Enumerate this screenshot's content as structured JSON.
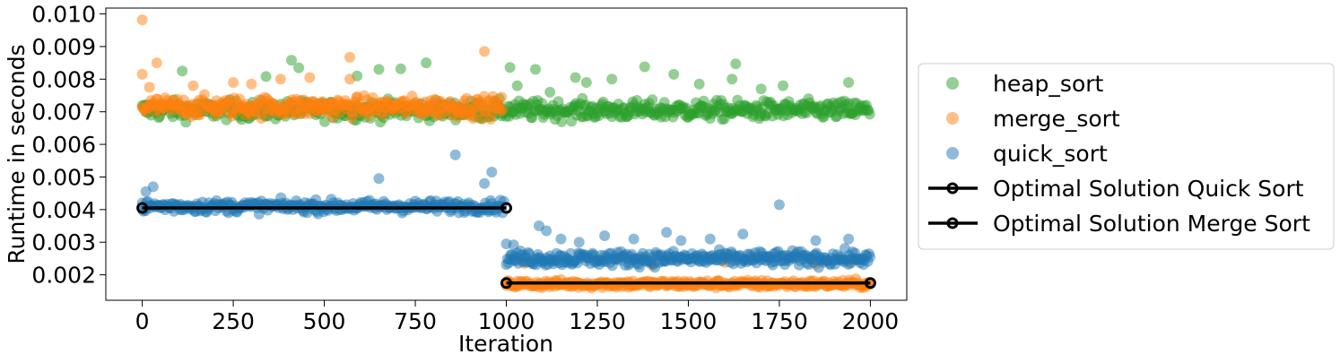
{
  "chart_data": {
    "type": "scatter",
    "xlabel": "Iteration",
    "ylabel": "Runtime in seconds",
    "xlim": [
      -100,
      2100
    ],
    "ylim": [
      0.00122,
      0.01018
    ],
    "xticks": [
      0,
      250,
      500,
      750,
      1000,
      1250,
      1500,
      1750,
      2000
    ],
    "yticks": [
      0.002,
      0.003,
      0.004,
      0.005,
      0.006,
      0.007,
      0.008,
      0.009,
      0.01
    ],
    "xtick_labels": [
      "0",
      "250",
      "500",
      "750",
      "1000",
      "1250",
      "1500",
      "1750",
      "2000"
    ],
    "ytick_labels": [
      "0.002",
      "0.003",
      "0.004",
      "0.005",
      "0.006",
      "0.007",
      "0.008",
      "0.009",
      "0.010"
    ],
    "grid": false,
    "legend": {
      "placement": "outside-right",
      "entries": [
        "heap_sort",
        "merge_sort",
        "quick_sort",
        "Optimal Solution Quick Sort",
        "Optimal Solution Merge Sort"
      ]
    },
    "scatter_series": [
      {
        "name": "heap_sort",
        "color": "#2ca02c",
        "segments": [
          {
            "x_start": 0,
            "x_end": 2000,
            "center": 0.00705,
            "spread": 0.00028
          }
        ],
        "outliers": [
          [
            110,
            0.00825
          ],
          [
            340,
            0.00808
          ],
          [
            410,
            0.00858
          ],
          [
            430,
            0.00835
          ],
          [
            590,
            0.0081
          ],
          [
            650,
            0.0083
          ],
          [
            710,
            0.00832
          ],
          [
            780,
            0.0085
          ],
          [
            1010,
            0.00836
          ],
          [
            1030,
            0.0078
          ],
          [
            1080,
            0.0083
          ],
          [
            1120,
            0.0076
          ],
          [
            1190,
            0.00805
          ],
          [
            1220,
            0.0079
          ],
          [
            1290,
            0.008
          ],
          [
            1380,
            0.00838
          ],
          [
            1460,
            0.00815
          ],
          [
            1530,
            0.00785
          ],
          [
            1620,
            0.008
          ],
          [
            1630,
            0.00847
          ],
          [
            1700,
            0.0077
          ],
          [
            1760,
            0.0078
          ],
          [
            1940,
            0.0079
          ]
        ]
      },
      {
        "name": "merge_sort",
        "color": "#ff7f0e",
        "segments": [
          {
            "x_start": 0,
            "x_end": 990,
            "center": 0.00715,
            "spread": 0.0003
          },
          {
            "x_start": 1000,
            "x_end": 2000,
            "center": 0.00172,
            "spread": 0.00012
          }
        ],
        "outliers": [
          [
            0,
            0.00982
          ],
          [
            0,
            0.00815
          ],
          [
            40,
            0.0085
          ],
          [
            250,
            0.0079
          ],
          [
            380,
            0.008
          ],
          [
            460,
            0.00805
          ],
          [
            570,
            0.008
          ],
          [
            570,
            0.00867
          ],
          [
            940,
            0.00885
          ],
          [
            20,
            0.00775
          ],
          [
            140,
            0.0078
          ],
          [
            300,
            0.00785
          ],
          [
            1050,
            0.00235
          ],
          [
            1400,
            0.0023
          ],
          [
            1600,
            0.00238
          ],
          [
            1850,
            0.00232
          ],
          [
            1950,
            0.0024
          ]
        ]
      },
      {
        "name": "quick_sort",
        "color": "#1f77b4",
        "segments": [
          {
            "x_start": 0,
            "x_end": 995,
            "center": 0.0041,
            "spread": 0.00018
          },
          {
            "x_start": 1000,
            "x_end": 2000,
            "center": 0.0025,
            "spread": 0.00022
          }
        ],
        "outliers": [
          [
            10,
            0.00455
          ],
          [
            30,
            0.0047
          ],
          [
            650,
            0.00495
          ],
          [
            860,
            0.00568
          ],
          [
            940,
            0.0048
          ],
          [
            960,
            0.00515
          ],
          [
            1000,
            0.00295
          ],
          [
            1020,
            0.00292
          ],
          [
            1090,
            0.0035
          ],
          [
            1110,
            0.00335
          ],
          [
            1150,
            0.0031
          ],
          [
            1200,
            0.003
          ],
          [
            1270,
            0.0032
          ],
          [
            1350,
            0.0031
          ],
          [
            1440,
            0.0033
          ],
          [
            1480,
            0.00305
          ],
          [
            1560,
            0.0031
          ],
          [
            1650,
            0.00325
          ],
          [
            1750,
            0.00415
          ],
          [
            1850,
            0.00305
          ],
          [
            1940,
            0.0031
          ]
        ]
      }
    ],
    "line_series": [
      {
        "name": "Optimal Solution Quick Sort",
        "x": [
          0,
          1000
        ],
        "y": [
          0.00405,
          0.00405
        ],
        "color": "#000000",
        "marker_edge": "#000000"
      },
      {
        "name": "Optimal Solution Merge Sort",
        "x": [
          1000,
          2000
        ],
        "y": [
          0.00175,
          0.00175
        ],
        "color": "#000000",
        "marker_edge": "#000000"
      }
    ]
  }
}
